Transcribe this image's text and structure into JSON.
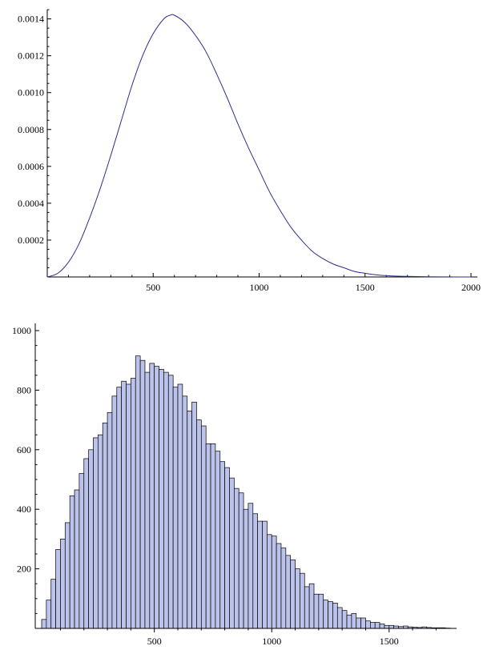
{
  "chart_data": [
    {
      "type": "line",
      "title": "",
      "xlabel": "",
      "ylabel": "",
      "xlim": [
        0,
        2000
      ],
      "ylim": [
        0,
        0.00142
      ],
      "grid": false,
      "x_ticks": [
        500,
        1000,
        1500,
        2000
      ],
      "x_tick_labels": [
        "500",
        "1000",
        "1500",
        "2000"
      ],
      "y_ticks": [
        0.0002,
        0.0004,
        0.0006,
        0.0008,
        0.001,
        0.0012,
        0.0014
      ],
      "y_tick_labels": [
        "0.0002",
        "0.0004",
        "0.0006",
        "0.0008",
        "0.0010",
        "0.0012",
        "0.0014"
      ],
      "series": [
        {
          "color": "#2e2e8f",
          "x": [
            0,
            50,
            100,
            150,
            200,
            250,
            300,
            350,
            400,
            450,
            500,
            550,
            580,
            600,
            650,
            700,
            750,
            800,
            850,
            900,
            950,
            1000,
            1050,
            1100,
            1150,
            1200,
            1250,
            1300,
            1350,
            1400,
            1450,
            1500,
            1550,
            1600,
            1700,
            1800,
            1900,
            2000
          ],
          "y": [
            0,
            2e-05,
            8e-05,
            0.00018,
            0.00032,
            0.00048,
            0.00066,
            0.00085,
            0.00104,
            0.0012,
            0.00132,
            0.0014,
            0.00142,
            0.00142,
            0.00138,
            0.00131,
            0.00122,
            0.0011,
            0.00097,
            0.00083,
            0.0007,
            0.00058,
            0.00046,
            0.00036,
            0.00027,
            0.0002,
            0.00014,
            0.0001,
            7e-05,
            5e-05,
            3e-05,
            2e-05,
            1.2e-05,
            7e-06,
            3e-06,
            1e-06,
            3e-07,
            0
          ]
        }
      ]
    },
    {
      "type": "bar",
      "title": "",
      "xlabel": "",
      "ylabel": "",
      "xlim": [
        20,
        1760
      ],
      "ylim": [
        0,
        1000
      ],
      "grid": false,
      "bin_start": 20,
      "bin_width": 20,
      "x_ticks": [
        500,
        1000,
        1500
      ],
      "x_tick_labels": [
        "500",
        "1000",
        "1500"
      ],
      "y_ticks": [
        200,
        400,
        600,
        800,
        1000
      ],
      "y_tick_labels": [
        "200",
        "400",
        "600",
        "800",
        "1000"
      ],
      "values": [
        30,
        95,
        165,
        265,
        300,
        355,
        445,
        465,
        520,
        570,
        600,
        640,
        650,
        690,
        725,
        780,
        810,
        830,
        820,
        840,
        915,
        900,
        860,
        890,
        880,
        870,
        860,
        850,
        810,
        820,
        780,
        730,
        760,
        700,
        680,
        620,
        620,
        595,
        560,
        540,
        505,
        470,
        455,
        400,
        420,
        385,
        360,
        360,
        315,
        310,
        285,
        270,
        245,
        230,
        200,
        185,
        140,
        150,
        115,
        115,
        95,
        90,
        85,
        70,
        60,
        45,
        50,
        35,
        35,
        25,
        20,
        20,
        15,
        10,
        10,
        8,
        6,
        8,
        5,
        4,
        3,
        5,
        3,
        2,
        2,
        2,
        1
      ]
    }
  ]
}
